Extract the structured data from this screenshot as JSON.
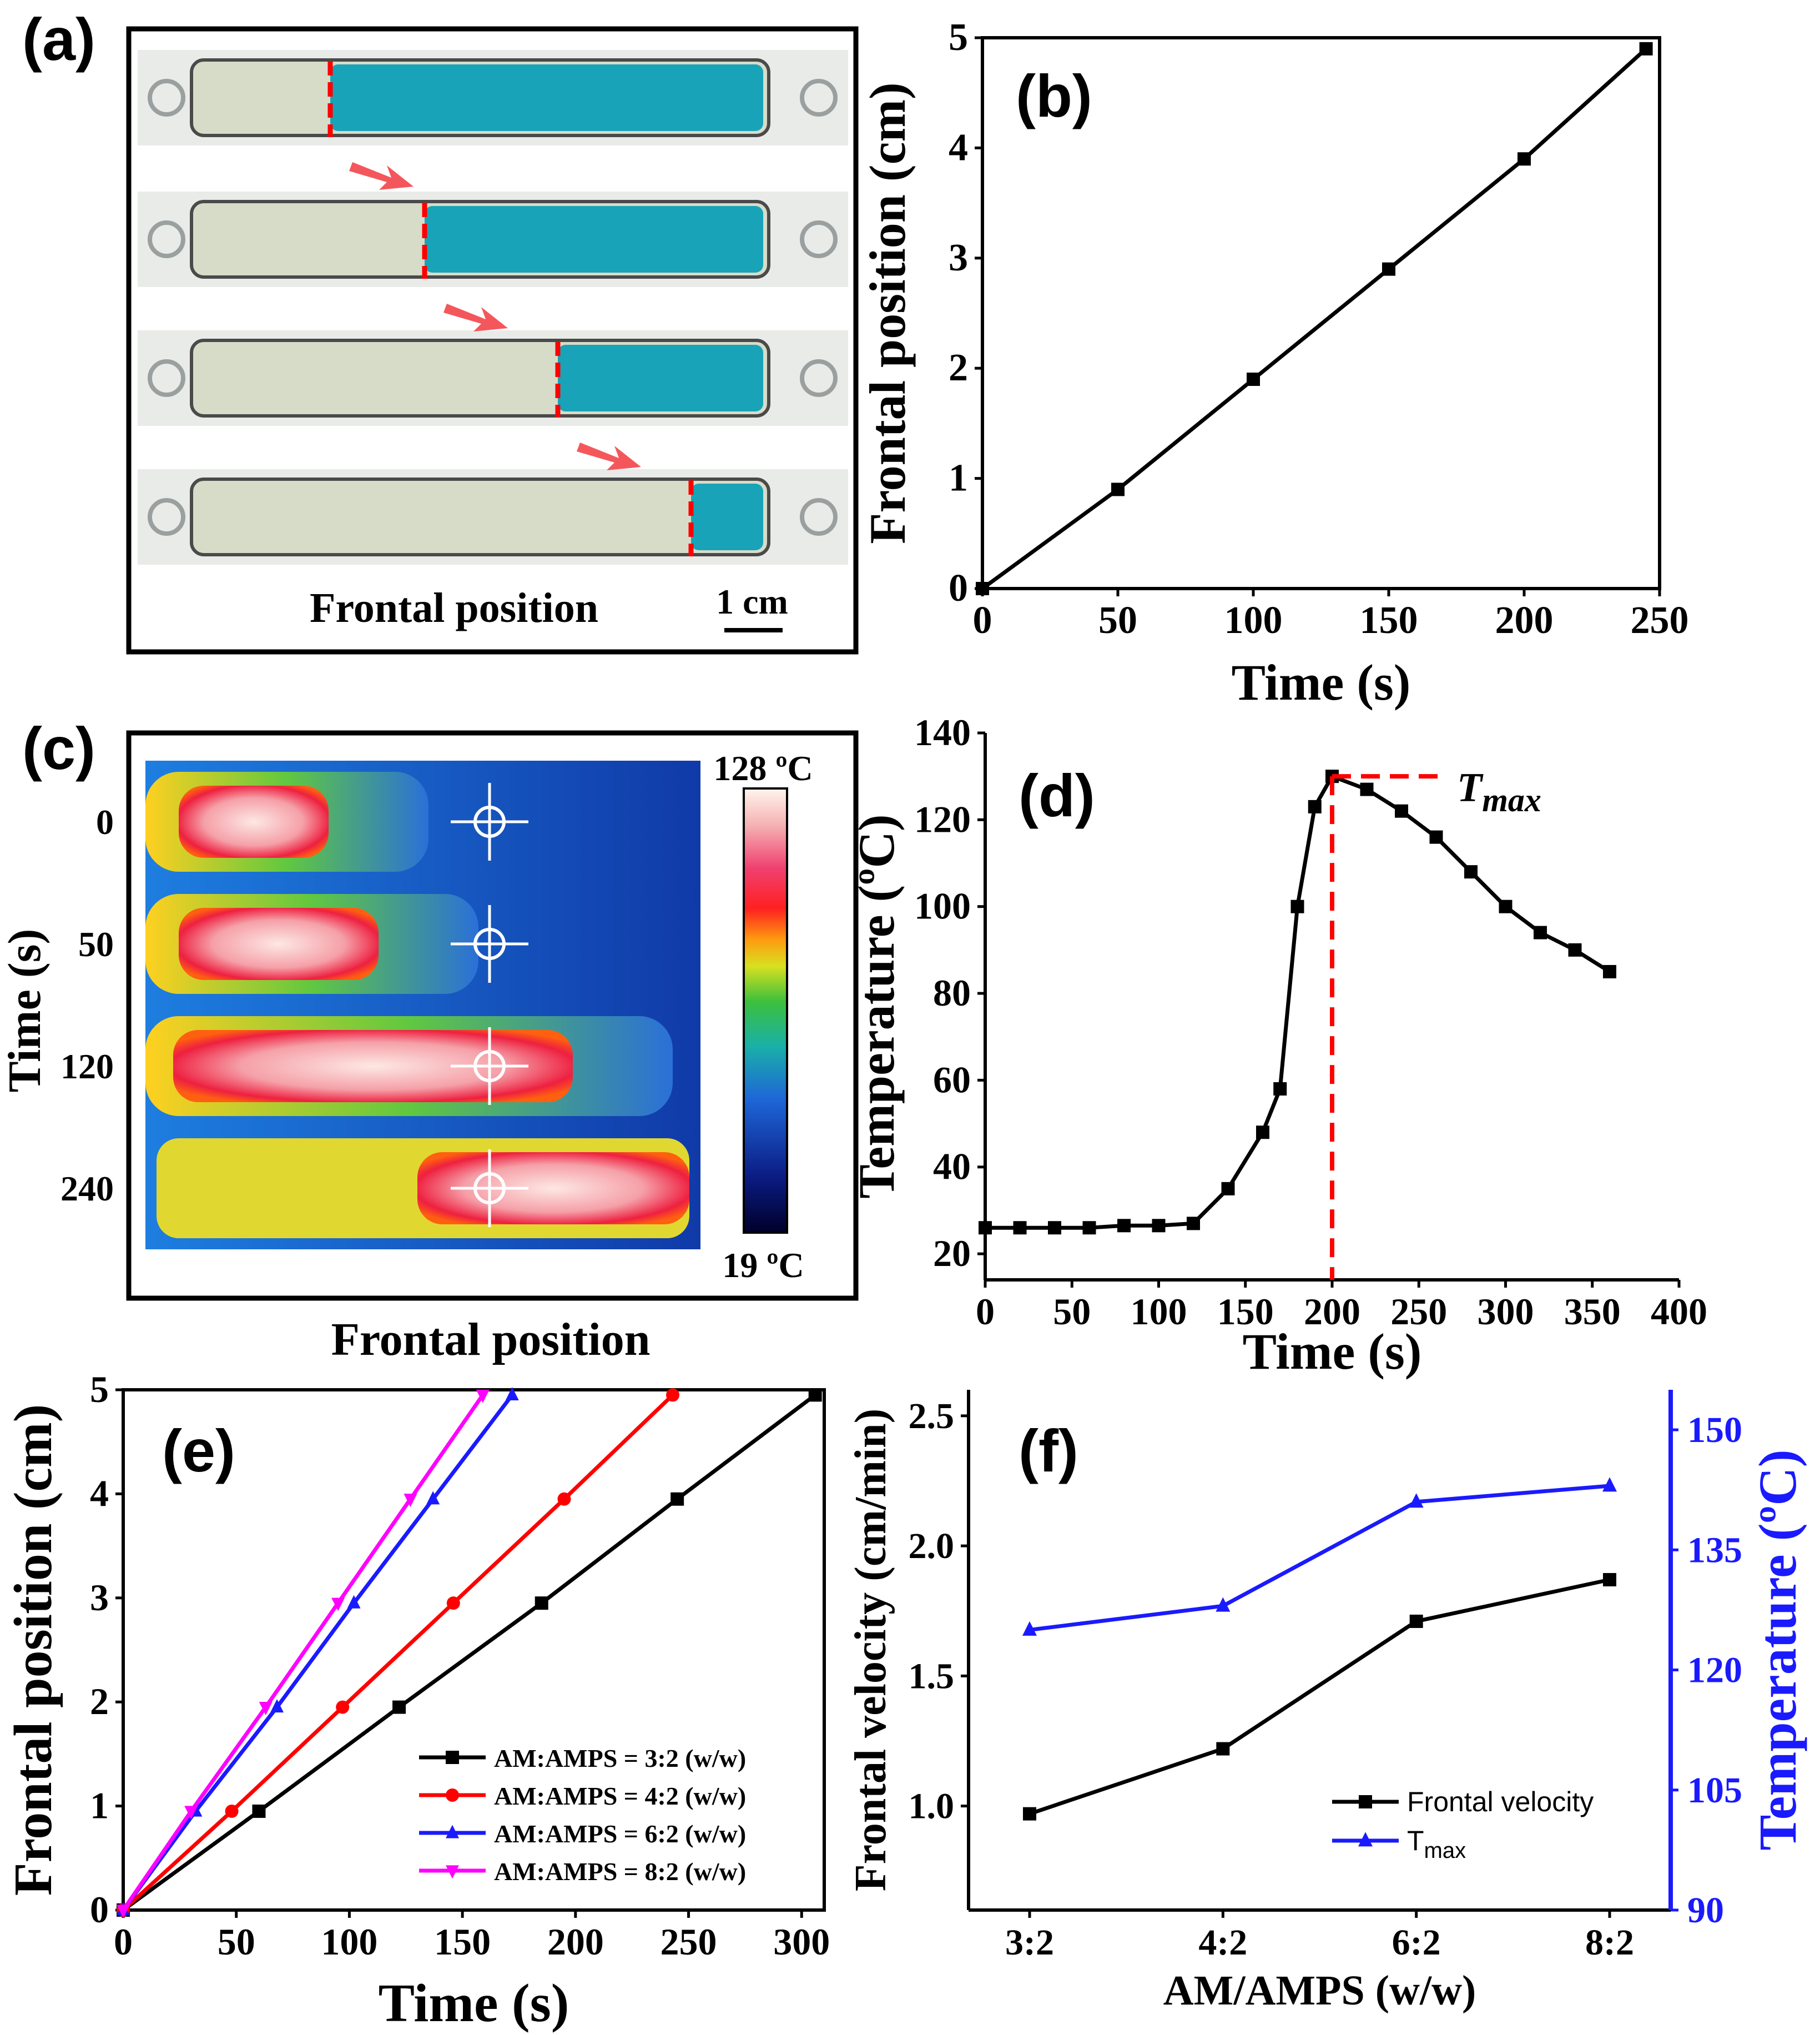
{
  "panels": {
    "a": {
      "label": "(a)",
      "caption": "Frontal position",
      "scale_text": "1 cm",
      "fronts": [
        0.23,
        0.4,
        0.64,
        0.88
      ]
    },
    "c": {
      "label": "(c)",
      "caption": "Frontal position",
      "ylabel": "Time (s)",
      "row_labels": [
        "0",
        "50",
        "120",
        "240"
      ],
      "colorbar_max": "128 ºC",
      "colorbar_min": "19 ºC"
    },
    "d": {
      "annotation": "T",
      "annotation_sub": "max"
    }
  },
  "colors": {
    "black": "#000000",
    "red": "#ff0000",
    "blue": "#1a1aff",
    "magenta": "#ff00ff",
    "tube_blue": "#19a3b8",
    "arrow": "#f4575b"
  },
  "chart_data": [
    {
      "id": "b",
      "label": "(b)",
      "type": "line",
      "xlabel": "Time (s)",
      "ylabel": "Frontal position (cm)",
      "xlim": [
        0,
        250
      ],
      "ylim": [
        0,
        5
      ],
      "xticks": [
        "0",
        "50",
        "100",
        "150",
        "200",
        "250"
      ],
      "yticks": [
        "0",
        "1",
        "2",
        "3",
        "4",
        "5"
      ],
      "series": [
        {
          "name": "Frontal position",
          "x": [
            0,
            50,
            100,
            150,
            200,
            245
          ],
          "y": [
            0,
            0.9,
            1.9,
            2.9,
            3.9,
            4.9
          ]
        }
      ]
    },
    {
      "id": "d",
      "label": "(d)",
      "type": "line",
      "xlabel": "Time (s)",
      "ylabel": "Temperature (ºC)",
      "xlim": [
        0,
        400
      ],
      "ylim": [
        14,
        140
      ],
      "xticks": [
        "0",
        "50",
        "100",
        "150",
        "200",
        "250",
        "300",
        "350",
        "400"
      ],
      "yticks": [
        "20",
        "40",
        "60",
        "80",
        "100",
        "120",
        "140"
      ],
      "series": [
        {
          "name": "Temperature",
          "x": [
            0,
            20,
            40,
            60,
            80,
            100,
            120,
            140,
            160,
            170,
            180,
            190,
            200,
            220,
            240,
            260,
            280,
            300,
            320,
            340,
            360
          ],
          "y": [
            26,
            26,
            26,
            26,
            26.5,
            26.5,
            27,
            35,
            48,
            58,
            100,
            123,
            130,
            127,
            122,
            116,
            108,
            100,
            94,
            90,
            85
          ]
        }
      ],
      "tmax_time": 200,
      "tmax_value": 130
    },
    {
      "id": "e",
      "label": "(e)",
      "type": "line",
      "xlabel": "Time (s)",
      "ylabel": "Frontal position (cm)",
      "xlim": [
        0,
        310
      ],
      "ylim": [
        0,
        5
      ],
      "xticks": [
        "0",
        "50",
        "100",
        "150",
        "200",
        "250",
        "300"
      ],
      "yticks": [
        "0",
        "1",
        "2",
        "3",
        "4",
        "5"
      ],
      "series": [
        {
          "name": "AM:AMPS = 3:2 (w/w)",
          "x": [
            0,
            60,
            122,
            185,
            245,
            306
          ],
          "y": [
            0,
            0.95,
            1.95,
            2.95,
            3.95,
            4.95
          ]
        },
        {
          "name": "AM:AMPS = 4:2 (w/w)",
          "x": [
            0,
            48,
            97,
            146,
            195,
            243
          ],
          "y": [
            0,
            0.95,
            1.95,
            2.95,
            3.95,
            4.95
          ]
        },
        {
          "name": "AM:AMPS = 6:2 (w/w)",
          "x": [
            0,
            32,
            68,
            102,
            137,
            172
          ],
          "y": [
            0,
            0.95,
            1.95,
            2.95,
            3.95,
            4.95
          ]
        },
        {
          "name": "AM:AMPS = 8:2 (w/w)",
          "x": [
            0,
            30,
            63,
            95,
            127,
            159
          ],
          "y": [
            0,
            0.95,
            1.95,
            2.95,
            3.95,
            4.95
          ]
        }
      ]
    },
    {
      "id": "f",
      "label": "(f)",
      "type": "line",
      "xlabel": "AM/AMPS (w/w)",
      "ylabel": "Frontal velocity (cm/min)",
      "y2label": "Temperature (ºC)",
      "categories": [
        "3:2",
        "4:2",
        "6:2",
        "8:2"
      ],
      "ylim": [
        0.6,
        2.6
      ],
      "y2lim": [
        90,
        155
      ],
      "yticks": [
        "1.0",
        "1.5",
        "2.0",
        "2.5"
      ],
      "y2ticks": [
        "90",
        "105",
        "120",
        "135",
        "150"
      ],
      "series": [
        {
          "name": "Frontal velocity",
          "axis": "left",
          "values": [
            0.97,
            1.22,
            1.71,
            1.87
          ]
        },
        {
          "name": "T",
          "name_sub": "max",
          "axis": "right",
          "values": [
            125,
            128,
            141,
            143
          ]
        }
      ]
    }
  ]
}
